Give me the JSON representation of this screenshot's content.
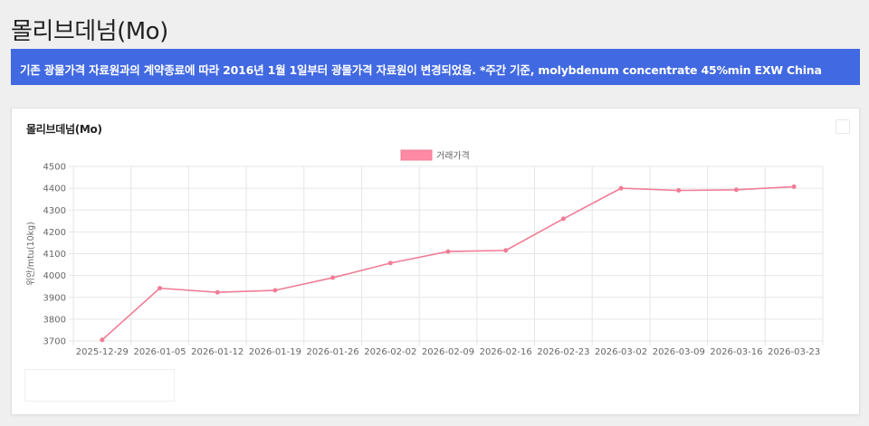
{
  "page": {
    "title": "몰리브데넘(Mo)",
    "notice": "기존 광물가격 자료원과의 계약종료에 따라 2016년 1월 1일부터 광물가격 자료원이 변경되었음. *주간 기준, molybdenum concentrate 45%min EXW China"
  },
  "card": {
    "title": "몰리브데넘(Mo)"
  },
  "chart_data": {
    "type": "line",
    "title": "",
    "xlabel": "",
    "ylabel": "위안/mtu(10kg)",
    "categories": [
      "2025-12-29",
      "2026-01-05",
      "2026-01-12",
      "2026-01-19",
      "2026-01-26",
      "2026-02-02",
      "2026-02-09",
      "2026-02-16",
      "2026-02-23",
      "2026-03-02",
      "2026-03-09",
      "2026-03-16",
      "2026-03-23"
    ],
    "series": [
      {
        "name": "거래가격",
        "values": [
          3705,
          3942,
          3923,
          3932,
          3990,
          4057,
          4110,
          4115,
          4260,
          4400,
          4390,
          4393,
          4407
        ]
      }
    ],
    "ylim": [
      3700,
      4500
    ],
    "yticks": [
      3700,
      3800,
      3900,
      4000,
      4100,
      4200,
      4300,
      4400,
      4500
    ],
    "grid": true,
    "legend": "top-center",
    "colors": {
      "line": "#f07d96",
      "legend_fill": "#ff8aa5",
      "grid": "#e6e6e6"
    }
  }
}
